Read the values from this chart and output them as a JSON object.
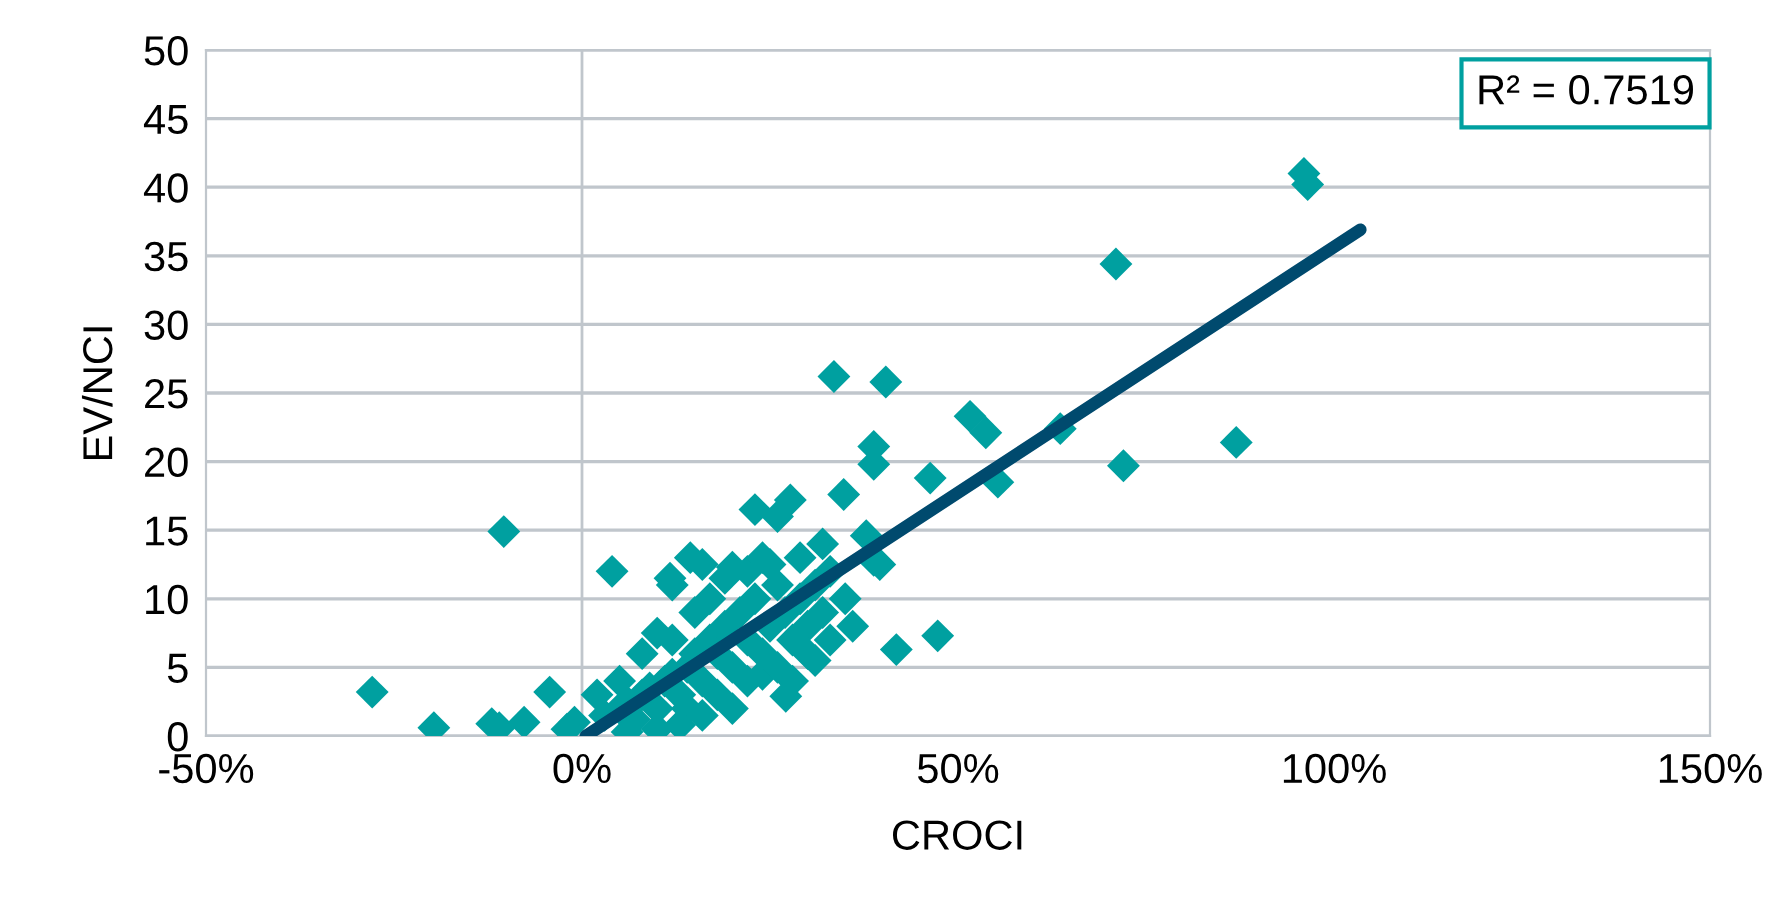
{
  "chart_data": {
    "type": "scatter",
    "xlabel": "CROCI",
    "ylabel": "EV/NCI",
    "xlim": [
      -50,
      150
    ],
    "xticks": [
      {
        "value": -50,
        "label": "-50%"
      },
      {
        "value": 0,
        "label": "0%"
      },
      {
        "value": 50,
        "label": "50%"
      },
      {
        "value": 100,
        "label": "100%"
      },
      {
        "value": 150,
        "label": "150%"
      }
    ],
    "ylim": [
      0,
      50
    ],
    "yticks": [
      0,
      5,
      10,
      15,
      20,
      25,
      30,
      35,
      40,
      45,
      50
    ],
    "grid": "y",
    "legend": false,
    "marker": "diamond",
    "ref_lines": [
      {
        "axis": "x",
        "value": 0,
        "color": "#c0c6cc"
      }
    ],
    "annotations": [
      "R² = 0.7519"
    ],
    "series": [
      {
        "color": "#00a0a0",
        "x": [
          -27.9,
          -19.7,
          -12,
          -11,
          -10.4,
          -7.7,
          -4.3,
          4,
          11.7,
          14.4,
          33.5,
          40.4,
          51.6,
          53.7,
          38.8,
          38.8,
          46.3,
          34.8,
          27.7,
          55.3,
          63.6,
          71,
          72,
          87,
          96,
          96.5,
          41.8,
          47.3,
          27.1,
          38.8,
          39.6,
          37.8,
          3,
          5,
          6,
          7,
          8,
          9,
          10,
          11,
          12,
          13,
          14,
          15,
          16,
          17,
          18,
          19,
          20,
          21,
          22,
          23,
          24,
          25,
          26,
          27,
          28,
          29,
          30,
          31,
          32,
          33,
          5,
          8,
          10,
          12,
          15,
          17,
          19,
          20,
          22,
          24,
          25,
          23,
          26,
          14,
          16,
          18,
          20,
          22,
          24,
          6,
          10,
          13,
          -2,
          -1,
          2,
          26,
          28,
          30,
          33,
          35,
          36,
          32,
          29,
          31,
          12,
          16
        ],
        "values": [
          3.2,
          0.6,
          0.9,
          0.6,
          14.9,
          1,
          3.2,
          12,
          11.5,
          13,
          26.2,
          25.8,
          23.3,
          22.1,
          21.1,
          19.8,
          18.8,
          17.6,
          17.2,
          18.5,
          22.4,
          34.4,
          19.7,
          21.4,
          41,
          40.2,
          6.3,
          7.3,
          2.9,
          12.8,
          12.5,
          14.6,
          1.5,
          2,
          2.5,
          1.2,
          3,
          3.5,
          2,
          4,
          4.5,
          3,
          5,
          6,
          4,
          7,
          6,
          8,
          5,
          9,
          7,
          10,
          6,
          8,
          11,
          9,
          7,
          10,
          8,
          11,
          9,
          7,
          4,
          6,
          7.5,
          7,
          9,
          10,
          11.5,
          12.3,
          12,
          13,
          12.5,
          16.5,
          16,
          2,
          1.5,
          3,
          2,
          4,
          4.5,
          0.3,
          0.5,
          0.8,
          0.5,
          1,
          3,
          5,
          4,
          6,
          12,
          10,
          8,
          14,
          13,
          5.5,
          11,
          12.5
        ]
      },
      {
        "type": "line",
        "color": "#004a6e",
        "marker": "none",
        "line_style": "solid",
        "x": [
          0.5,
          103.5
        ],
        "values": [
          0,
          36.9
        ]
      }
    ]
  }
}
